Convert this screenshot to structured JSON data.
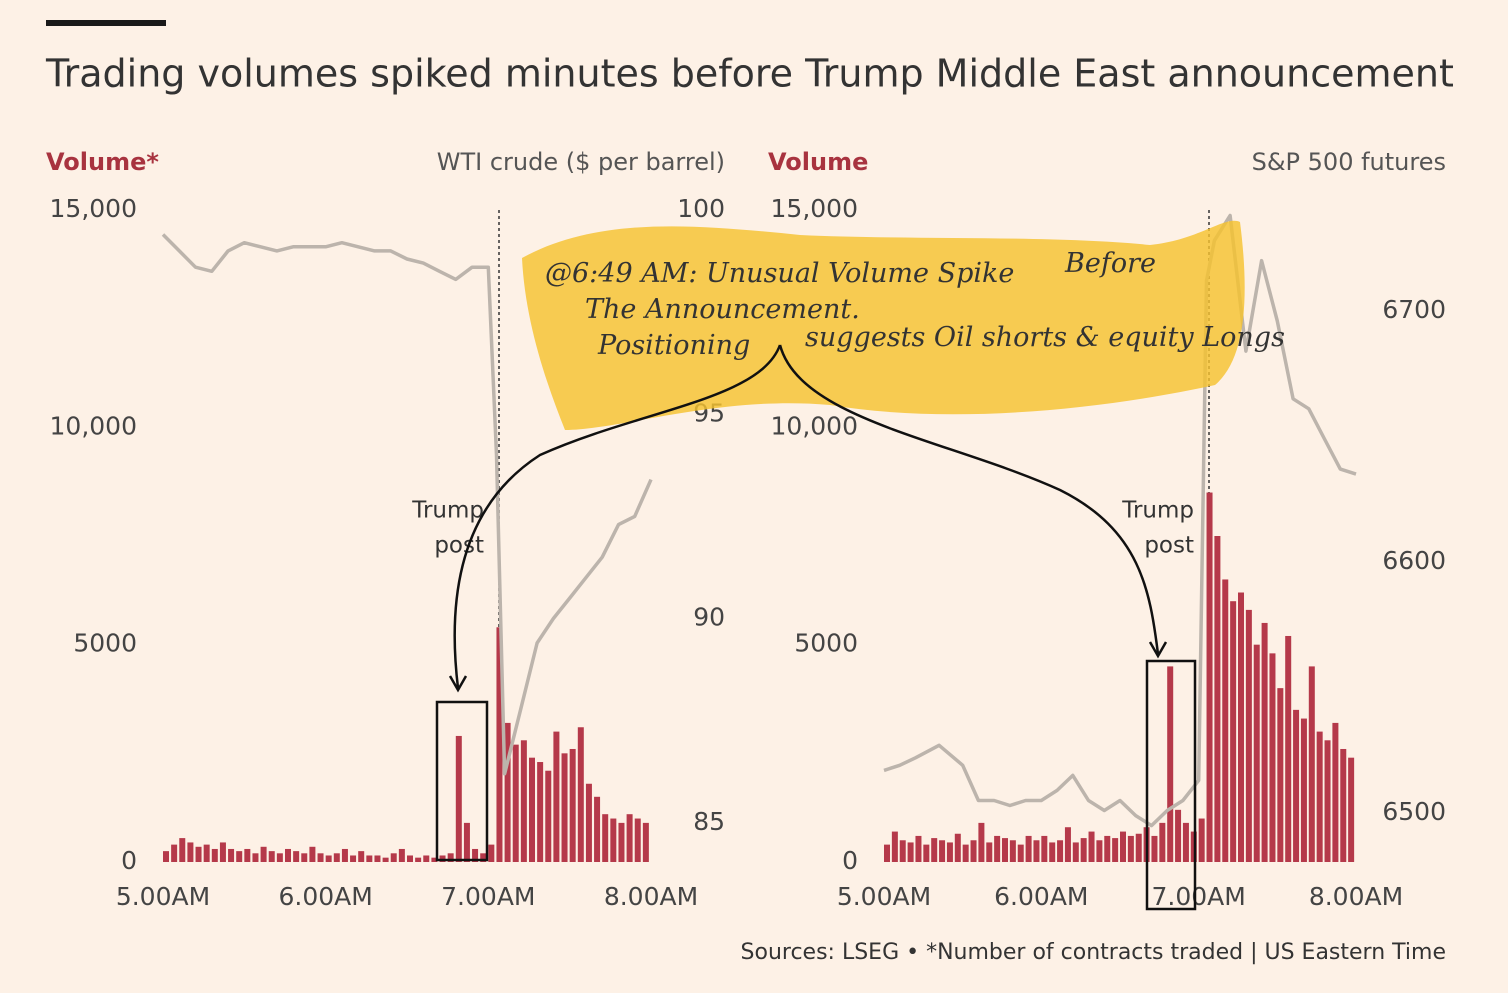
{
  "title": "Trading volumes spiked minutes before Trump Middle East announcement",
  "source": "Sources: LSEG • *Number of contracts traded | US Eastern Time",
  "annotation": {
    "line1": "@6:49 AM: Unusual Volume Spike",
    "line1b": "Before",
    "line2": "The Announcement.",
    "line3a": "Positioning",
    "line3b": "suggests Oil shorts & equity Longs"
  },
  "chart_data": [
    {
      "type": "combo",
      "y_label": "Volume*",
      "y2_label": "WTI crude ($ per barrel)",
      "event_label": [
        "Trump",
        "post"
      ],
      "xlim": [
        5,
        8
      ],
      "xticks": [
        {
          "value": 5,
          "label": "5.00AM"
        },
        {
          "value": 6,
          "label": "6.00AM"
        },
        {
          "value": 7,
          "label": "7.00AM"
        },
        {
          "value": 8,
          "label": "8.00AM"
        }
      ],
      "ylim": [
        0,
        15000
      ],
      "yticks": [
        0,
        5000,
        {
          "value": 10000,
          "label": "10,000"
        },
        {
          "value": 15000,
          "label": "15,000"
        }
      ],
      "y2lim": [
        84.04,
        100
      ],
      "y2ticks": [
        85,
        90,
        95,
        100
      ],
      "series": [
        {
          "kind": "bar",
          "axis": "y",
          "color": "#b5394a",
          "x": [
            5,
            5.05,
            5.1,
            5.15,
            5.2,
            5.25,
            5.3,
            5.35,
            5.4,
            5.45,
            5.5,
            5.55,
            5.6,
            5.65,
            5.7,
            5.75,
            5.8,
            5.85,
            5.9,
            5.95,
            6,
            6.05,
            6.1,
            6.15,
            6.2,
            6.25,
            6.3,
            6.35,
            6.4,
            6.45,
            6.5,
            6.55,
            6.6,
            6.65,
            6.7,
            6.75,
            6.8,
            6.85,
            6.9,
            6.95,
            7,
            7.05,
            7.1,
            7.15,
            7.2,
            7.25,
            7.3,
            7.35,
            7.4,
            7.45,
            7.5,
            7.55,
            7.6,
            7.65,
            7.7,
            7.75,
            7.8,
            7.85,
            7.9,
            7.95
          ],
          "values": [
            250,
            400,
            550,
            450,
            350,
            400,
            300,
            450,
            300,
            250,
            300,
            200,
            350,
            250,
            200,
            300,
            250,
            200,
            350,
            200,
            150,
            200,
            300,
            150,
            250,
            150,
            150,
            100,
            200,
            300,
            150,
            100,
            150,
            100,
            150,
            200,
            2900,
            900,
            300,
            200,
            400,
            5400,
            3200,
            2700,
            2800,
            2400,
            2300,
            2100,
            3000,
            2500,
            2600,
            3100,
            1800,
            1500,
            1100,
            1000,
            900,
            1100,
            1000,
            900
          ]
        },
        {
          "kind": "line",
          "axis": "y2",
          "color": "#bcb4ac",
          "x": [
            5,
            5.1,
            5.2,
            5.3,
            5.4,
            5.5,
            5.6,
            5.7,
            5.8,
            5.9,
            6,
            6.1,
            6.2,
            6.3,
            6.4,
            6.5,
            6.6,
            6.7,
            6.8,
            6.9,
            7,
            7.05,
            7.1,
            7.2,
            7.3,
            7.4,
            7.5,
            7.6,
            7.7,
            7.8,
            7.9,
            8
          ],
          "values": [
            99.4,
            99.0,
            98.6,
            98.5,
            99.0,
            99.2,
            99.1,
            99.0,
            99.1,
            99.1,
            99.1,
            99.2,
            99.1,
            99.0,
            99.0,
            98.8,
            98.7,
            98.5,
            98.3,
            98.6,
            98.6,
            94.0,
            86.2,
            87.8,
            89.4,
            90.0,
            90.5,
            91.0,
            91.5,
            92.3,
            92.5,
            93.4
          ]
        }
      ]
    },
    {
      "type": "combo",
      "y_label": "Volume",
      "y2_label": "S&P 500 futures",
      "event_label": [
        "Trump",
        "post"
      ],
      "xlim": [
        5,
        8
      ],
      "xticks": [
        {
          "value": 5,
          "label": "5.00AM"
        },
        {
          "value": 6,
          "label": "6.00AM"
        },
        {
          "value": 7,
          "label": "7.00AM"
        },
        {
          "value": 8,
          "label": "8.00AM"
        }
      ],
      "ylim": [
        0,
        15000
      ],
      "yticks": [
        0,
        5000,
        {
          "value": 10000,
          "label": "10,000"
        },
        {
          "value": 15000,
          "label": "15,000"
        }
      ],
      "y2lim": [
        6480.5,
        6740.2
      ],
      "y2ticks": [
        6500,
        6600,
        6700
      ],
      "series": [
        {
          "kind": "bar",
          "axis": "y",
          "color": "#b5394a",
          "x": [
            5,
            5.05,
            5.1,
            5.15,
            5.2,
            5.25,
            5.3,
            5.35,
            5.4,
            5.45,
            5.5,
            5.55,
            5.6,
            5.65,
            5.7,
            5.75,
            5.8,
            5.85,
            5.9,
            5.95,
            6,
            6.05,
            6.1,
            6.15,
            6.2,
            6.25,
            6.3,
            6.35,
            6.4,
            6.45,
            6.5,
            6.55,
            6.6,
            6.65,
            6.7,
            6.75,
            6.8,
            6.85,
            6.9,
            6.95,
            7,
            7.05,
            7.1,
            7.15,
            7.2,
            7.25,
            7.3,
            7.35,
            7.4,
            7.45,
            7.5,
            7.55,
            7.6,
            7.65,
            7.7,
            7.75,
            7.8,
            7.85,
            7.9,
            7.95
          ],
          "values": [
            400,
            700,
            500,
            450,
            600,
            400,
            550,
            500,
            450,
            650,
            400,
            500,
            900,
            450,
            600,
            550,
            500,
            400,
            600,
            500,
            600,
            450,
            500,
            800,
            450,
            550,
            700,
            500,
            600,
            550,
            700,
            600,
            650,
            800,
            600,
            900,
            4500,
            1200,
            900,
            700,
            1000,
            8500,
            7500,
            6500,
            6000,
            6200,
            5800,
            5000,
            5500,
            4800,
            4000,
            5200,
            3500,
            3300,
            4500,
            3000,
            2800,
            3200,
            2600,
            2400
          ]
        },
        {
          "kind": "line",
          "axis": "y2",
          "color": "#bcb4ac",
          "x": [
            5,
            5.1,
            5.2,
            5.35,
            5.5,
            5.6,
            5.7,
            5.8,
            5.9,
            6,
            6.1,
            6.2,
            6.3,
            6.4,
            6.5,
            6.6,
            6.7,
            6.8,
            6.9,
            7,
            7.05,
            7.1,
            7.2,
            7.3,
            7.4,
            7.5,
            7.6,
            7.7,
            7.8,
            7.9,
            8
          ],
          "values": [
            6517,
            6519,
            6522,
            6527,
            6519,
            6505,
            6505,
            6503,
            6505,
            6505,
            6509,
            6515,
            6505,
            6501,
            6505,
            6499,
            6495,
            6501,
            6505,
            6513,
            6712,
            6728,
            6738,
            6684,
            6720,
            6696,
            6665,
            6661,
            6649,
            6637,
            6635
          ]
        }
      ]
    }
  ]
}
